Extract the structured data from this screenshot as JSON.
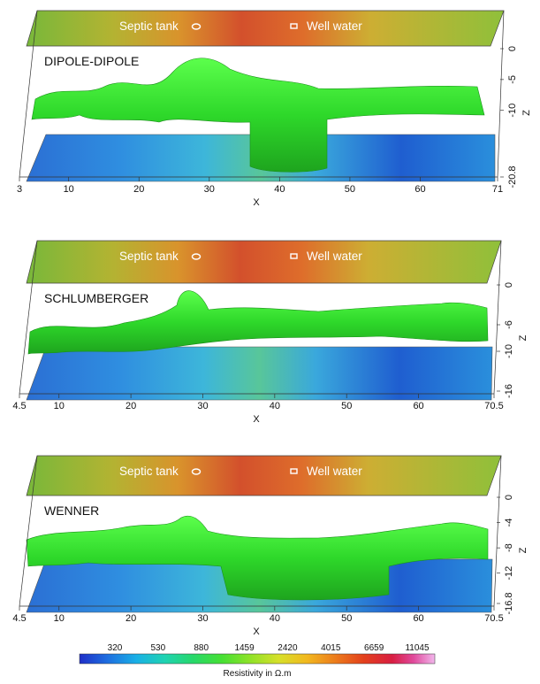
{
  "chart_data": {
    "type": "heatmap",
    "panels": [
      {
        "title": "DIPOLE-DIPOLE",
        "annotations": [
          "Septic tank",
          "Well water"
        ],
        "xlabel": "X",
        "zlabel": "Z",
        "x_ticks": [
          "3",
          "10",
          "20",
          "30",
          "40",
          "50",
          "60",
          "71"
        ],
        "x_tick_values": [
          3,
          10,
          20,
          30,
          40,
          50,
          60,
          71
        ],
        "xlim": [
          3,
          71
        ],
        "z_ticks": [
          "0",
          "-5",
          "-10",
          "-20.8"
        ],
        "z_tick_values": [
          0,
          -5,
          -10,
          -20.8
        ],
        "zlim": [
          -20.8,
          0
        ]
      },
      {
        "title": "SCHLUMBERGER",
        "annotations": [
          "Septic tank",
          "Well water"
        ],
        "xlabel": "X",
        "zlabel": "Z",
        "x_ticks": [
          "4.5",
          "10",
          "20",
          "30",
          "40",
          "50",
          "60",
          "70.5"
        ],
        "x_tick_values": [
          4.5,
          10,
          20,
          30,
          40,
          50,
          60,
          70.5
        ],
        "xlim": [
          4.5,
          70.5
        ],
        "z_ticks": [
          "0",
          "-6",
          "-10",
          "-16"
        ],
        "z_tick_values": [
          0,
          -6,
          -10,
          -16
        ],
        "zlim": [
          -16,
          0
        ]
      },
      {
        "title": "WENNER",
        "annotations": [
          "Septic tank",
          "Well water"
        ],
        "xlabel": "X",
        "zlabel": "Z",
        "x_ticks": [
          "4.5",
          "10",
          "20",
          "30",
          "40",
          "50",
          "60",
          "70.5"
        ],
        "x_tick_values": [
          4.5,
          10,
          20,
          30,
          40,
          50,
          60,
          70.5
        ],
        "xlim": [
          4.5,
          70.5
        ],
        "z_ticks": [
          "0",
          "-4",
          "-8",
          "-12",
          "-16.8"
        ],
        "z_tick_values": [
          0,
          -4,
          -8,
          -12,
          -16.8
        ],
        "zlim": [
          -16.8,
          0
        ]
      }
    ],
    "colorbar": {
      "title": "Resistivity in Ω.m",
      "tick_labels": [
        "320",
        "530",
        "880",
        "1459",
        "2420",
        "4015",
        "6659",
        "11045"
      ],
      "colors": [
        "#1f2fc8",
        "#1e6fe0",
        "#19b0e6",
        "#1fd3b2",
        "#27d86a",
        "#46e034",
        "#8fe228",
        "#d6e02a",
        "#f2b81f",
        "#ec7c1c",
        "#e3401c",
        "#d81e42",
        "#e04a9c",
        "#ec8ad6",
        "#f2b6ec"
      ]
    },
    "colors": {
      "top_slice": [
        "#6fb83a",
        "#b9b531",
        "#d48a2c",
        "#cf5a2c",
        "#d8802b",
        "#c3b13a",
        "#8fbd3a"
      ],
      "isosurface": "#2ee02e",
      "bottom_slice": [
        "#1c64cc",
        "#2aa0e0",
        "#39c2d8",
        "#28d39a"
      ]
    }
  }
}
